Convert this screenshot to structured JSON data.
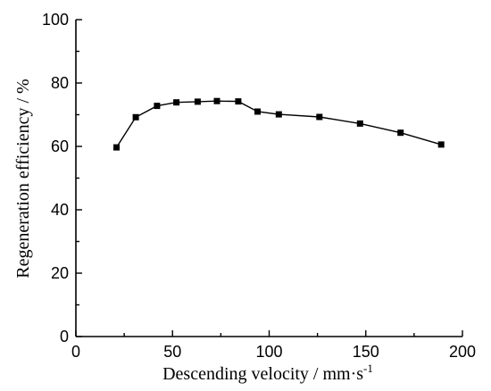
{
  "chart_data": {
    "type": "line",
    "xlabel": "Descending velocity  / mm·s",
    "xlabel_sup": "-1",
    "ylabel": "Regeneration efficiency / %",
    "xlim": [
      0,
      200
    ],
    "ylim": [
      0,
      100
    ],
    "x_ticks": [
      0,
      50,
      100,
      150,
      200
    ],
    "y_ticks": [
      0,
      20,
      40,
      60,
      80,
      100
    ],
    "x_tick_labels": [
      "0",
      "50",
      "100",
      "150",
      "200"
    ],
    "y_tick_labels": [
      "0",
      "20",
      "40",
      "60",
      "80",
      "100"
    ],
    "grid": false,
    "marker": "square",
    "series": [
      {
        "x": [
          21,
          31,
          42,
          52,
          63,
          73,
          84,
          94,
          105,
          126,
          147,
          168,
          189
        ],
        "y": [
          59.7,
          69.2,
          72.8,
          73.9,
          74.1,
          74.3,
          74.2,
          71.0,
          70.1,
          69.3,
          67.2,
          64.3,
          60.6
        ]
      }
    ]
  }
}
